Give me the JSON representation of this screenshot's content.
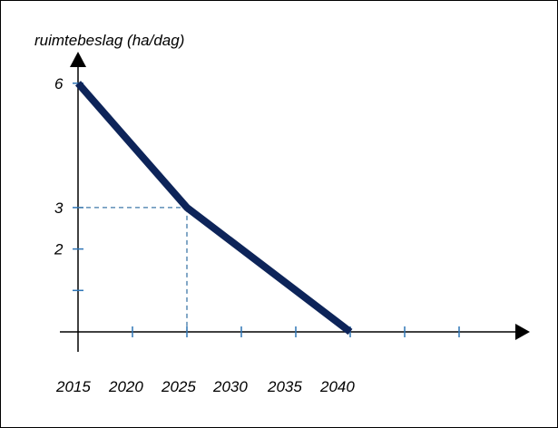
{
  "chart_data": {
    "type": "line",
    "title": "",
    "ylabel": "ruimtebeslag (ha/dag)",
    "xlabel": "",
    "x_tick_labels": [
      "2015",
      "2020",
      "2025",
      "2030",
      "2035",
      "2040"
    ],
    "y_tick_labels": [
      "6",
      "3",
      "2"
    ],
    "series": [
      {
        "x": [
          2015,
          2025,
          2040
        ],
        "y": [
          6,
          3,
          0
        ]
      }
    ],
    "reference_point": {
      "x": 2025,
      "y": 3
    },
    "xlim": [
      2015,
      2050
    ],
    "ylim": [
      0,
      6.6
    ],
    "x_minor_ticks": [
      2015,
      2020,
      2025,
      2030,
      2035,
      2040,
      2045,
      2050
    ],
    "y_minor_ticks": [
      1,
      2,
      3,
      6
    ],
    "colors": {
      "series": "#0d2459",
      "axis": "#000000",
      "tick": "#2e75b6",
      "reference": "#3f78a8"
    }
  }
}
